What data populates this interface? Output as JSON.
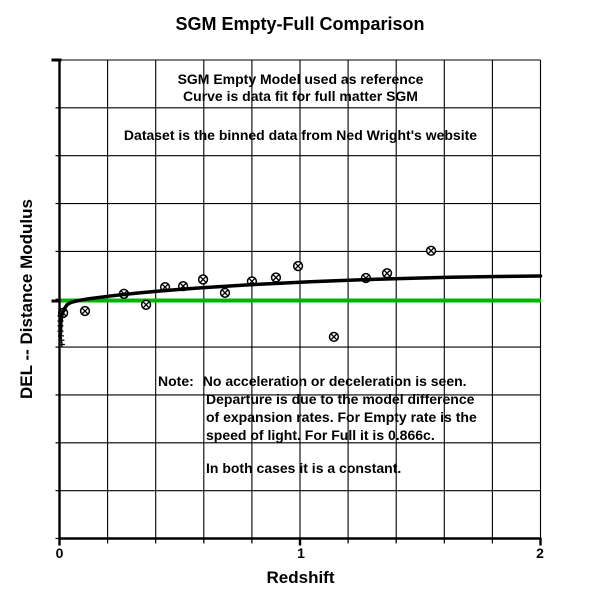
{
  "figure": {
    "title": "SGM Empty-Full Comparison",
    "xlabel": "Redshift",
    "ylabel": "DEL -- Distance Modulus",
    "x_tick_labels": [
      "0",
      "1",
      "2"
    ]
  },
  "annotations": {
    "ref_line1": "SGM Empty Model used as reference",
    "ref_line2": "Curve is data fit for full matter SGM",
    "dataset": "Dataset is the binned data from Ned Wright's website",
    "note_label": "Note:",
    "note_line1": "No acceleration or deceleration is seen.",
    "note_lines": [
      "Departure is due to the model difference",
      "of expansion rates.  For Empty rate is the",
      "speed of light.  For Full it is 0.866c."
    ],
    "note_last": "In both cases it is a constant."
  },
  "chart_data": {
    "type": "scatter",
    "title": "SGM Empty-Full Comparison",
    "xlabel": "Redshift",
    "ylabel": "DEL -- Distance Modulus",
    "xlim": [
      0,
      2
    ],
    "x_gridline_step": 0.2,
    "y_gridline_divisions": 10,
    "grid": true,
    "y_axis_numeric_labels": false,
    "units_note": "y (del) values are in units of one y-grid division, measured relative to the green SGM-Empty reference line (del = 0)",
    "reference_line": {
      "name": "sgm-empty-reference",
      "del": 0,
      "color": "#00b400"
    },
    "colors": {
      "curve": "#000000",
      "points": "#000000",
      "grid": "#000000",
      "background": "#ffffff"
    },
    "series": [
      {
        "name": "binned-data-points",
        "marker": "circle-x",
        "points": [
          {
            "z": 0.015,
            "del": -0.26
          },
          {
            "z": 0.106,
            "del": -0.22
          },
          {
            "z": 0.268,
            "del": 0.14
          },
          {
            "z": 0.36,
            "del": -0.09
          },
          {
            "z": 0.439,
            "del": 0.28
          },
          {
            "z": 0.514,
            "del": 0.3
          },
          {
            "z": 0.597,
            "del": 0.44
          },
          {
            "z": 0.688,
            "del": 0.16
          },
          {
            "z": 0.8,
            "del": 0.4
          },
          {
            "z": 0.9,
            "del": 0.48
          },
          {
            "z": 0.992,
            "del": 0.72
          },
          {
            "z": 1.141,
            "del": -0.76
          },
          {
            "z": 1.274,
            "del": 0.47
          },
          {
            "z": 1.362,
            "del": 0.57
          },
          {
            "z": 1.545,
            "del": 1.04
          }
        ]
      },
      {
        "name": "low-z-cluster",
        "marker": "plus",
        "points": [
          {
            "z": 0.004,
            "del": -0.32
          },
          {
            "z": 0.004,
            "del": -0.43
          },
          {
            "z": 0.004,
            "del": -0.53
          },
          {
            "z": 0.004,
            "del": -0.64
          },
          {
            "z": 0.006,
            "del": -0.74
          },
          {
            "z": 0.008,
            "del": -0.83
          },
          {
            "z": 0.01,
            "del": -0.92
          }
        ]
      },
      {
        "name": "full-sgm-fit-curve",
        "marker": "none",
        "line": true,
        "points": [
          {
            "z": 0.004,
            "del": -0.7
          },
          {
            "z": 0.006,
            "del": -0.45
          },
          {
            "z": 0.01,
            "del": -0.3
          },
          {
            "z": 0.019,
            "del": -0.18
          },
          {
            "z": 0.031,
            "del": -0.09
          },
          {
            "z": 0.048,
            "del": -0.04
          },
          {
            "z": 0.069,
            "del": -0.01
          },
          {
            "z": 0.094,
            "del": 0.015
          },
          {
            "z": 0.127,
            "del": 0.04
          },
          {
            "z": 0.168,
            "del": 0.067
          },
          {
            "z": 0.218,
            "del": 0.098
          },
          {
            "z": 0.277,
            "del": 0.132
          },
          {
            "z": 0.343,
            "del": 0.165
          },
          {
            "z": 0.418,
            "del": 0.199
          },
          {
            "z": 0.501,
            "del": 0.232
          },
          {
            "z": 0.593,
            "del": 0.265
          },
          {
            "z": 0.692,
            "del": 0.299
          },
          {
            "z": 0.8,
            "del": 0.332
          },
          {
            "z": 0.917,
            "del": 0.362
          },
          {
            "z": 1.042,
            "del": 0.391
          },
          {
            "z": 1.175,
            "del": 0.418
          },
          {
            "z": 1.316,
            "del": 0.443
          },
          {
            "z": 1.466,
            "del": 0.466
          },
          {
            "z": 1.624,
            "del": 0.485
          },
          {
            "z": 1.79,
            "del": 0.5
          },
          {
            "z": 2.0,
            "del": 0.512
          }
        ]
      }
    ]
  }
}
